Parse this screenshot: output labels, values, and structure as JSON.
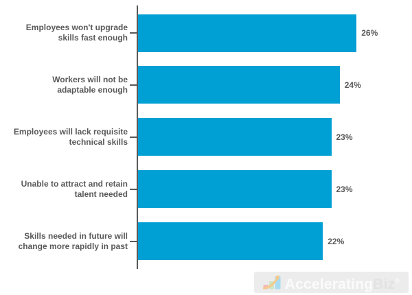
{
  "chart_data": {
    "type": "bar",
    "orientation": "horizontal",
    "categories": [
      "Employees won't upgrade skills fast enough",
      "Workers will not be adaptable enough",
      "Employees will lack requisite technical skills",
      "Unable to attract and retain talent needed",
      "Skills needed in future will change more rapidly in past"
    ],
    "label_lines": [
      [
        "Employees won't upgrade",
        "skills fast enough"
      ],
      [
        "Workers will not be",
        "adaptable enough"
      ],
      [
        "Employees will lack requisite",
        "technical skills"
      ],
      [
        "Unable to attract and retain",
        "talent needed"
      ],
      [
        "Skills needed in future will",
        "change more rapidly in past"
      ]
    ],
    "values": [
      26,
      24,
      23,
      23,
      22
    ],
    "value_labels": [
      "26%",
      "24%",
      "23%",
      "23%",
      "22%"
    ],
    "unit": "%",
    "xlim": [
      0,
      32.6
    ],
    "grid": false,
    "legend": false,
    "bar_color": "#009fd4",
    "axis_color": "#595959",
    "text_color": "#595959"
  },
  "branding": {
    "logo_primary": "Accelerating",
    "logo_secondary": "Biz",
    "registered_mark": "®",
    "icon": "growth-chart-arrow-icon",
    "logo_bg_color": "#ececec"
  }
}
